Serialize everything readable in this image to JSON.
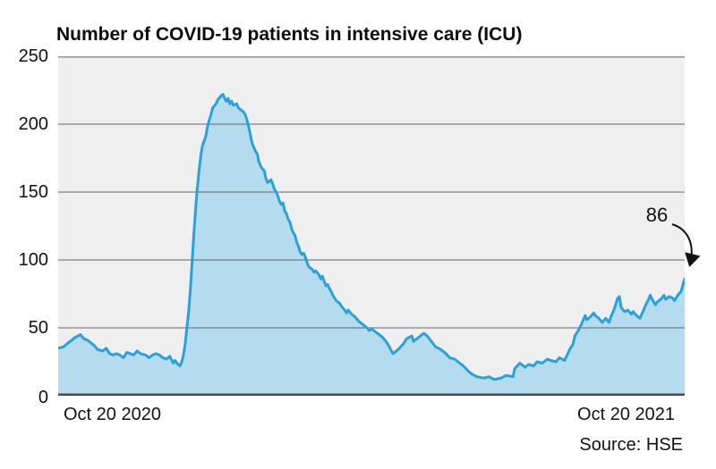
{
  "chart_data": {
    "type": "area",
    "title": "Number of COVID-19 patients in intensive care (ICU)",
    "source": "Source: HSE",
    "xlabel": "",
    "ylabel": "",
    "x_axis": {
      "start_label": "Oct 20 2020",
      "end_label": "Oct 20 2021",
      "unit": "days since Oct 20 2020",
      "range": [
        0,
        365
      ]
    },
    "ylim": [
      0,
      250
    ],
    "yticks": [
      "250",
      "200",
      "150",
      "100",
      "50",
      "0"
    ],
    "grid": "horizontal",
    "legend": "none",
    "annotation": {
      "label": "86",
      "value": 86,
      "x_day": 365
    },
    "colors": {
      "line": "#2aa1d8",
      "fill": "#b5dcee",
      "plot_background": "#efefef",
      "gridline": "#8c8c8c",
      "baseline": "#4a4a4a",
      "text": "#111111"
    },
    "series": [
      {
        "name": "ICU patients",
        "points": [
          [
            0,
            35
          ],
          [
            3,
            36
          ],
          [
            5,
            38
          ],
          [
            8,
            41
          ],
          [
            10,
            43
          ],
          [
            13,
            45
          ],
          [
            15,
            42
          ],
          [
            17,
            41
          ],
          [
            19,
            39
          ],
          [
            21,
            37
          ],
          [
            23,
            34
          ],
          [
            26,
            33
          ],
          [
            28,
            35
          ],
          [
            30,
            31
          ],
          [
            32,
            30
          ],
          [
            34,
            31
          ],
          [
            36,
            30
          ],
          [
            38,
            28
          ],
          [
            40,
            32
          ],
          [
            42,
            31
          ],
          [
            44,
            30
          ],
          [
            46,
            33
          ],
          [
            48,
            31
          ],
          [
            51,
            30
          ],
          [
            53,
            28
          ],
          [
            55,
            30
          ],
          [
            57,
            31
          ],
          [
            59,
            30
          ],
          [
            61,
            28
          ],
          [
            63,
            27
          ],
          [
            65,
            29
          ],
          [
            67,
            24
          ],
          [
            68,
            26
          ],
          [
            70,
            23
          ],
          [
            71,
            22
          ],
          [
            72,
            25
          ],
          [
            73,
            30
          ],
          [
            74,
            38
          ],
          [
            75,
            50
          ],
          [
            76,
            62
          ],
          [
            77,
            78
          ],
          [
            78,
            98
          ],
          [
            79,
            118
          ],
          [
            80,
            136
          ],
          [
            81,
            152
          ],
          [
            82,
            165
          ],
          [
            83,
            176
          ],
          [
            84,
            184
          ],
          [
            86,
            191
          ],
          [
            87,
            198
          ],
          [
            88,
            203
          ],
          [
            89,
            207
          ],
          [
            90,
            212
          ],
          [
            92,
            215
          ],
          [
            93,
            218
          ],
          [
            95,
            221
          ],
          [
            96,
            222
          ],
          [
            97,
            219
          ],
          [
            98,
            217
          ],
          [
            99,
            219
          ],
          [
            100,
            215
          ],
          [
            101,
            217
          ],
          [
            102,
            214
          ],
          [
            104,
            215
          ],
          [
            105,
            212
          ],
          [
            107,
            210
          ],
          [
            108,
            209
          ],
          [
            109,
            207
          ],
          [
            110,
            203
          ],
          [
            111,
            198
          ],
          [
            112,
            192
          ],
          [
            113,
            186
          ],
          [
            114,
            183
          ],
          [
            115,
            180
          ],
          [
            116,
            178
          ],
          [
            117,
            172
          ],
          [
            118,
            169
          ],
          [
            119,
            167
          ],
          [
            120,
            166
          ],
          [
            121,
            160
          ],
          [
            122,
            157
          ],
          [
            124,
            159
          ],
          [
            125,
            156
          ],
          [
            126,
            152
          ],
          [
            127,
            150
          ],
          [
            128,
            147
          ],
          [
            129,
            143
          ],
          [
            130,
            141
          ],
          [
            131,
            142
          ],
          [
            132,
            136
          ],
          [
            133,
            134
          ],
          [
            134,
            130
          ],
          [
            135,
            128
          ],
          [
            136,
            123
          ],
          [
            137,
            120
          ],
          [
            138,
            118
          ],
          [
            139,
            113
          ],
          [
            140,
            110
          ],
          [
            141,
            106
          ],
          [
            142,
            104
          ],
          [
            143,
            105
          ],
          [
            144,
            102
          ],
          [
            145,
            98
          ],
          [
            146,
            95
          ],
          [
            147,
            94
          ],
          [
            148,
            93
          ],
          [
            149,
            91
          ],
          [
            150,
            92
          ],
          [
            152,
            89
          ],
          [
            153,
            86
          ],
          [
            154,
            88
          ],
          [
            155,
            84
          ],
          [
            156,
            81
          ],
          [
            157,
            82
          ],
          [
            158,
            79
          ],
          [
            159,
            77
          ],
          [
            160,
            74
          ],
          [
            162,
            70
          ],
          [
            164,
            68
          ],
          [
            165,
            66
          ],
          [
            167,
            63
          ],
          [
            168,
            61
          ],
          [
            169,
            63
          ],
          [
            171,
            60
          ],
          [
            173,
            58
          ],
          [
            175,
            55
          ],
          [
            176,
            54
          ],
          [
            178,
            52
          ],
          [
            180,
            50
          ],
          [
            181,
            48
          ],
          [
            183,
            49
          ],
          [
            185,
            47
          ],
          [
            187,
            45
          ],
          [
            189,
            43
          ],
          [
            191,
            40
          ],
          [
            193,
            36
          ],
          [
            195,
            31
          ],
          [
            198,
            34
          ],
          [
            201,
            38
          ],
          [
            203,
            42
          ],
          [
            206,
            44
          ],
          [
            207,
            40
          ],
          [
            210,
            43
          ],
          [
            213,
            46
          ],
          [
            215,
            44
          ],
          [
            218,
            39
          ],
          [
            220,
            36
          ],
          [
            223,
            34
          ],
          [
            226,
            31
          ],
          [
            228,
            28
          ],
          [
            231,
            27
          ],
          [
            233,
            25
          ],
          [
            236,
            22
          ],
          [
            239,
            18
          ],
          [
            241,
            16
          ],
          [
            244,
            14
          ],
          [
            248,
            13
          ],
          [
            251,
            14
          ],
          [
            254,
            12
          ],
          [
            258,
            13
          ],
          [
            261,
            15
          ],
          [
            265,
            14
          ],
          [
            266,
            20
          ],
          [
            269,
            24
          ],
          [
            272,
            21
          ],
          [
            274,
            23
          ],
          [
            277,
            22
          ],
          [
            279,
            25
          ],
          [
            282,
            24
          ],
          [
            285,
            27
          ],
          [
            287,
            26
          ],
          [
            290,
            25
          ],
          [
            292,
            28
          ],
          [
            295,
            26
          ],
          [
            298,
            34
          ],
          [
            300,
            38
          ],
          [
            301,
            44
          ],
          [
            303,
            48
          ],
          [
            305,
            53
          ],
          [
            307,
            59
          ],
          [
            308,
            56
          ],
          [
            310,
            58
          ],
          [
            312,
            61
          ],
          [
            313,
            59
          ],
          [
            315,
            57
          ],
          [
            317,
            54
          ],
          [
            319,
            57
          ],
          [
            321,
            54
          ],
          [
            322,
            58
          ],
          [
            324,
            64
          ],
          [
            326,
            72
          ],
          [
            327,
            73
          ],
          [
            328,
            65
          ],
          [
            330,
            62
          ],
          [
            332,
            63
          ],
          [
            334,
            60
          ],
          [
            335,
            62
          ],
          [
            337,
            59
          ],
          [
            339,
            57
          ],
          [
            340,
            60
          ],
          [
            342,
            66
          ],
          [
            344,
            71
          ],
          [
            345,
            74
          ],
          [
            346,
            71
          ],
          [
            348,
            67
          ],
          [
            349,
            69
          ],
          [
            351,
            71
          ],
          [
            353,
            74
          ],
          [
            354,
            71
          ],
          [
            356,
            73
          ],
          [
            358,
            72
          ],
          [
            359,
            70
          ],
          [
            361,
            74
          ],
          [
            363,
            77
          ],
          [
            364,
            82
          ],
          [
            365,
            86
          ]
        ]
      }
    ]
  }
}
